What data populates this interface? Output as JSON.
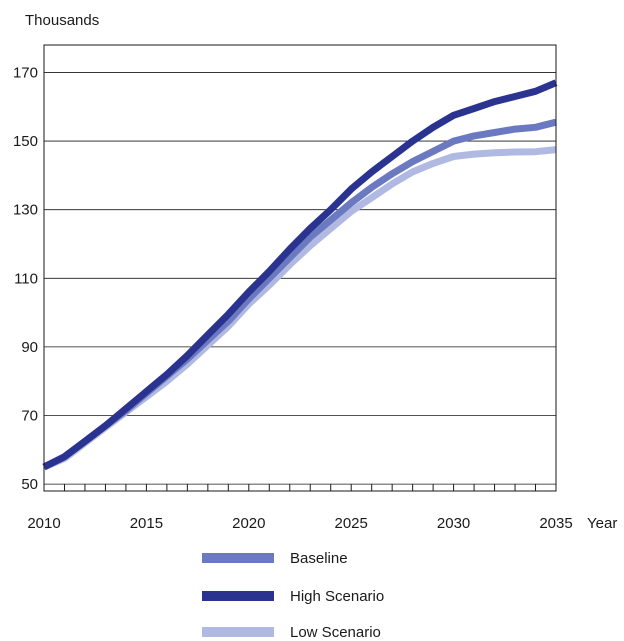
{
  "chart_data": {
    "type": "line",
    "ylabel": "Thousands",
    "xlabel": "Year",
    "xlim": [
      2010,
      2035
    ],
    "ylim": [
      48,
      178
    ],
    "yticks": [
      "50",
      "70",
      "90",
      "110",
      "130",
      "150",
      "170"
    ],
    "xticks": [
      "2010",
      "2015",
      "2020",
      "2025",
      "2030",
      "2035"
    ],
    "grid": true,
    "legend_position": "bottom",
    "colors": {
      "baseline": "#6b79c0",
      "high": "#2b3390",
      "low": "#b0b9e2"
    },
    "x": [
      2010,
      2011,
      2012,
      2013,
      2014,
      2015,
      2016,
      2017,
      2018,
      2019,
      2020,
      2021,
      2022,
      2023,
      2024,
      2025,
      2026,
      2027,
      2028,
      2029,
      2030,
      2031,
      2032,
      2033,
      2034,
      2035
    ],
    "series": [
      {
        "name": "Baseline",
        "values": [
          55,
          58,
          62.5,
          67,
          71.5,
          76.5,
          81.5,
          86.5,
          92,
          97.5,
          104,
          110,
          116,
          122,
          127,
          132,
          136.5,
          140.5,
          144,
          147,
          150,
          151.5,
          152.5,
          153.5,
          154,
          155.5
        ]
      },
      {
        "name": "High Scenario",
        "values": [
          55,
          58,
          62.5,
          67,
          72,
          77,
          82,
          87.5,
          93.5,
          99.5,
          106,
          112,
          118.5,
          124.5,
          130,
          136,
          141,
          145.5,
          150,
          154,
          157.5,
          159.5,
          161.5,
          163,
          164.5,
          167
        ]
      },
      {
        "name": "Low Scenario",
        "values": [
          55,
          57.5,
          62,
          66.5,
          71,
          75.5,
          80,
          85,
          90.5,
          96,
          102.5,
          108,
          114,
          119.5,
          124.5,
          129.5,
          133.5,
          137.5,
          141,
          143.5,
          145.5,
          146.2,
          146.6,
          146.8,
          146.9,
          147.5
        ]
      }
    ]
  }
}
